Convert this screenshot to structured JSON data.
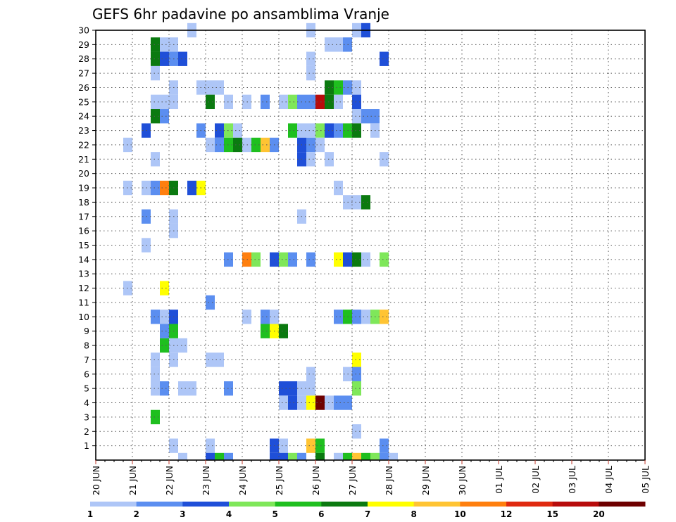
{
  "chart_data": {
    "type": "heatmap",
    "title": "GEFS 6hr padavine po ansamblima Vranje",
    "x_start": "2024-06-20T00:00",
    "x_step_hours": 6,
    "x_labels": [
      "20 JUN",
      "21 JUN",
      "22 JUN",
      "23 JUN",
      "24 JUN",
      "25 JUN",
      "26 JUN",
      "27 JUN",
      "28 JUN",
      "29 JUN",
      "30 JUN",
      "01 JUL",
      "02 JUL",
      "03 JUL",
      "04 JUL",
      "05 JUL"
    ],
    "y_labels": [
      "1",
      "2",
      "3",
      "4",
      "5",
      "6",
      "7",
      "8",
      "9",
      "10",
      "11",
      "12",
      "13",
      "14",
      "15",
      "16",
      "17",
      "18",
      "19",
      "20",
      "21",
      "22",
      "23",
      "24",
      "25",
      "26",
      "27",
      "28",
      "29",
      "30"
    ],
    "ylim": [
      0,
      30
    ],
    "grid": "dotted",
    "colorbar": {
      "labels": [
        "1",
        "2",
        "3",
        "4",
        "5",
        "6",
        "7",
        "8",
        "10",
        "12",
        "15",
        "20"
      ],
      "colors": [
        "#aec6f7",
        "#5b8ef0",
        "#1f4fd8",
        "#7fe75a",
        "#1fbf1f",
        "#0b7a10",
        "#ffff00",
        "#ffc433",
        "#ff7f0e",
        "#e02a10",
        "#b80c0c",
        "#6e0000"
      ]
    },
    "cells": [
      [
        10,
        30,
        0
      ],
      [
        28,
        30,
        0
      ],
      [
        29,
        30,
        2
      ],
      [
        23,
        30,
        0
      ],
      [
        6,
        29,
        5
      ],
      [
        7,
        29,
        0
      ],
      [
        8,
        29,
        0
      ],
      [
        25,
        29,
        0
      ],
      [
        26,
        29,
        0
      ],
      [
        27,
        29,
        1
      ],
      [
        6,
        28,
        5
      ],
      [
        7,
        28,
        2
      ],
      [
        8,
        28,
        1
      ],
      [
        9,
        28,
        2
      ],
      [
        23,
        28,
        0
      ],
      [
        31,
        28,
        2
      ],
      [
        6,
        27,
        0
      ],
      [
        23,
        27,
        0
      ],
      [
        8,
        26,
        0
      ],
      [
        11,
        26,
        0
      ],
      [
        12,
        26,
        0
      ],
      [
        13,
        26,
        0
      ],
      [
        25,
        26,
        5
      ],
      [
        26,
        26,
        4
      ],
      [
        27,
        26,
        1
      ],
      [
        28,
        26,
        0
      ],
      [
        6,
        25,
        0
      ],
      [
        7,
        25,
        0
      ],
      [
        8,
        25,
        0
      ],
      [
        12,
        25,
        5
      ],
      [
        14,
        25,
        0
      ],
      [
        16,
        25,
        0
      ],
      [
        18,
        25,
        1
      ],
      [
        20,
        25,
        0
      ],
      [
        21,
        25,
        3
      ],
      [
        22,
        25,
        1
      ],
      [
        23,
        25,
        1
      ],
      [
        24,
        25,
        10
      ],
      [
        25,
        25,
        5
      ],
      [
        26,
        25,
        0
      ],
      [
        28,
        25,
        2
      ],
      [
        6,
        24,
        5
      ],
      [
        7,
        24,
        1
      ],
      [
        28,
        24,
        0
      ],
      [
        29,
        24,
        1
      ],
      [
        30,
        24,
        1
      ],
      [
        5,
        23,
        2
      ],
      [
        11,
        23,
        1
      ],
      [
        13,
        23,
        2
      ],
      [
        14,
        23,
        3
      ],
      [
        15,
        23,
        0
      ],
      [
        21,
        23,
        4
      ],
      [
        22,
        23,
        0
      ],
      [
        23,
        23,
        0
      ],
      [
        24,
        23,
        3
      ],
      [
        25,
        23,
        2
      ],
      [
        26,
        23,
        1
      ],
      [
        27,
        23,
        4
      ],
      [
        28,
        23,
        5
      ],
      [
        30,
        23,
        0
      ],
      [
        3,
        22,
        0
      ],
      [
        12,
        22,
        0
      ],
      [
        13,
        22,
        1
      ],
      [
        14,
        22,
        4
      ],
      [
        15,
        22,
        5
      ],
      [
        16,
        22,
        0
      ],
      [
        17,
        22,
        4
      ],
      [
        18,
        22,
        7
      ],
      [
        19,
        22,
        1
      ],
      [
        22,
        22,
        2
      ],
      [
        23,
        22,
        1
      ],
      [
        24,
        22,
        0
      ],
      [
        6,
        21,
        0
      ],
      [
        22,
        21,
        2
      ],
      [
        23,
        21,
        0
      ],
      [
        25,
        21,
        0
      ],
      [
        31,
        21,
        0
      ],
      [
        3,
        19,
        0
      ],
      [
        5,
        19,
        0
      ],
      [
        6,
        19,
        1
      ],
      [
        7,
        19,
        8
      ],
      [
        8,
        19,
        5
      ],
      [
        10,
        19,
        2
      ],
      [
        11,
        19,
        6
      ],
      [
        26,
        19,
        0
      ],
      [
        27,
        18,
        0
      ],
      [
        28,
        18,
        0
      ],
      [
        29,
        18,
        5
      ],
      [
        5,
        17,
        1
      ],
      [
        8,
        17,
        0
      ],
      [
        22,
        17,
        0
      ],
      [
        8,
        16,
        0
      ],
      [
        5,
        15,
        0
      ],
      [
        14,
        14,
        1
      ],
      [
        16,
        14,
        8
      ],
      [
        17,
        14,
        3
      ],
      [
        19,
        14,
        2
      ],
      [
        20,
        14,
        3
      ],
      [
        21,
        14,
        1
      ],
      [
        23,
        14,
        1
      ],
      [
        26,
        14,
        6
      ],
      [
        27,
        14,
        2
      ],
      [
        28,
        14,
        5
      ],
      [
        29,
        14,
        0
      ],
      [
        31,
        14,
        3
      ],
      [
        3,
        12,
        0
      ],
      [
        7,
        12,
        6
      ],
      [
        12,
        11,
        1
      ],
      [
        6,
        10,
        1
      ],
      [
        7,
        10,
        0
      ],
      [
        8,
        10,
        2
      ],
      [
        16,
        10,
        0
      ],
      [
        18,
        10,
        1
      ],
      [
        19,
        10,
        0
      ],
      [
        26,
        10,
        1
      ],
      [
        27,
        10,
        4
      ],
      [
        28,
        10,
        1
      ],
      [
        29,
        10,
        0
      ],
      [
        30,
        10,
        3
      ],
      [
        31,
        10,
        7
      ],
      [
        7,
        9,
        1
      ],
      [
        8,
        9,
        4
      ],
      [
        18,
        9,
        4
      ],
      [
        19,
        9,
        6
      ],
      [
        20,
        9,
        5
      ],
      [
        7,
        8,
        4
      ],
      [
        8,
        8,
        0
      ],
      [
        9,
        8,
        0
      ],
      [
        6,
        7,
        0
      ],
      [
        8,
        7,
        0
      ],
      [
        12,
        7,
        0
      ],
      [
        13,
        7,
        0
      ],
      [
        28,
        7,
        6
      ],
      [
        6,
        6,
        0
      ],
      [
        23,
        6,
        0
      ],
      [
        27,
        6,
        0
      ],
      [
        28,
        6,
        1
      ],
      [
        6,
        5,
        0
      ],
      [
        7,
        5,
        1
      ],
      [
        9,
        5,
        0
      ],
      [
        10,
        5,
        0
      ],
      [
        14,
        5,
        1
      ],
      [
        20,
        5,
        2
      ],
      [
        21,
        5,
        2
      ],
      [
        22,
        5,
        0
      ],
      [
        23,
        5,
        0
      ],
      [
        28,
        5,
        3
      ],
      [
        20,
        4,
        0
      ],
      [
        21,
        4,
        2
      ],
      [
        22,
        4,
        0
      ],
      [
        23,
        4,
        6
      ],
      [
        24,
        4,
        11
      ],
      [
        25,
        4,
        0
      ],
      [
        26,
        4,
        1
      ],
      [
        27,
        4,
        1
      ],
      [
        6,
        3,
        4
      ],
      [
        28,
        2,
        0
      ],
      [
        8,
        1,
        0
      ],
      [
        12,
        1,
        0
      ],
      [
        19,
        1,
        2
      ],
      [
        20,
        1,
        0
      ],
      [
        23,
        1,
        7
      ],
      [
        24,
        1,
        4
      ],
      [
        31,
        1,
        1
      ],
      [
        9,
        0,
        0
      ],
      [
        12,
        0,
        2
      ],
      [
        13,
        0,
        4
      ],
      [
        14,
        0,
        1
      ],
      [
        19,
        0,
        2
      ],
      [
        20,
        0,
        2
      ],
      [
        21,
        0,
        3
      ],
      [
        22,
        0,
        1
      ],
      [
        24,
        0,
        5
      ],
      [
        26,
        0,
        0
      ],
      [
        27,
        0,
        4
      ],
      [
        28,
        0,
        7
      ],
      [
        29,
        0,
        4
      ],
      [
        30,
        0,
        3
      ],
      [
        31,
        0,
        1
      ],
      [
        32,
        0,
        0
      ]
    ]
  }
}
